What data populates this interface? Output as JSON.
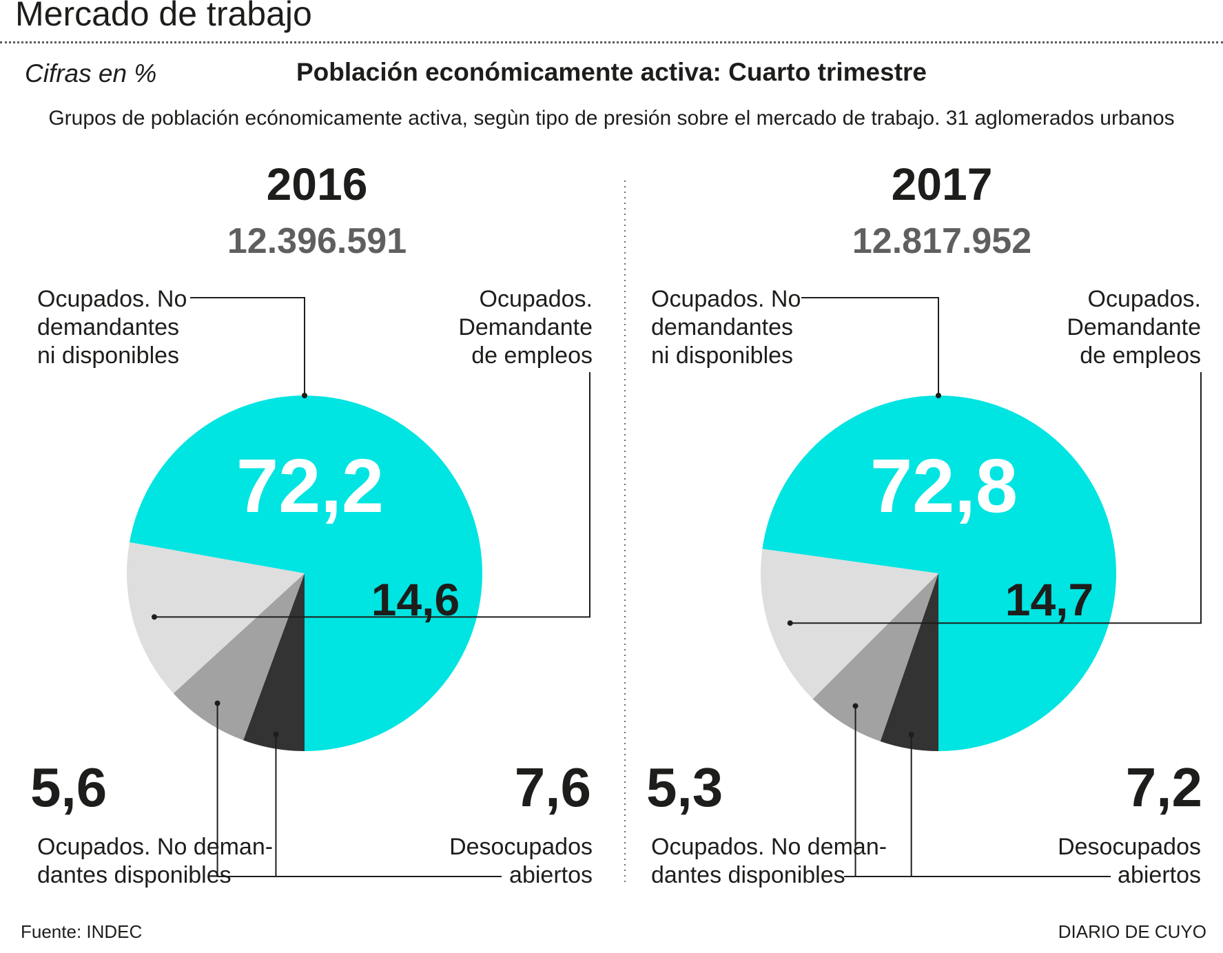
{
  "header": {
    "title": "Mercado de trabajo",
    "units": "Cifras en %",
    "chart_title": "Población económicamente activa: Cuarto trimestre",
    "subtitle": "Grupos de población ecónomicamente activa, segùn tipo de presión sobre el mercado de trabajo. 31 aglomerados urbanos"
  },
  "footer": {
    "source": "Fuente: INDEC",
    "brand": "DIARIO DE CUYO"
  },
  "colors": {
    "cyan": "#00e4e2",
    "light_gray": "#dedede",
    "mid_gray": "#a2a2a2",
    "dark": "#333333",
    "text": "#1d1d1b",
    "total_text": "#5f5f5f"
  },
  "chart_data": [
    {
      "type": "pie",
      "year": "2016",
      "total": "12.396.591",
      "slices": [
        {
          "label": "Ocupados. No demandantes ni disponibles",
          "value": 72.2,
          "value_label": "72,2",
          "color": "#00e4e2"
        },
        {
          "label": "Ocupados. Demandante de empleos",
          "value": 14.6,
          "value_label": "14,6",
          "color": "#dedede"
        },
        {
          "label": "Desocupados abiertos",
          "value": 7.6,
          "value_label": "7,6",
          "color": "#a2a2a2"
        },
        {
          "label": "Ocupados. No demandantes disponibles",
          "value": 5.6,
          "value_label": "5,6",
          "color": "#333333"
        }
      ]
    },
    {
      "type": "pie",
      "year": "2017",
      "total": "12.817.952",
      "slices": [
        {
          "label": "Ocupados. No demandantes ni disponibles",
          "value": 72.8,
          "value_label": "72,8",
          "color": "#00e4e2"
        },
        {
          "label": "Ocupados. Demandante de empleos",
          "value": 14.7,
          "value_label": "14,7",
          "color": "#dedede"
        },
        {
          "label": "Desocupados abiertos",
          "value": 7.2,
          "value_label": "7,2",
          "color": "#a2a2a2"
        },
        {
          "label": "Ocupados. No demandantes disponibles",
          "value": 5.3,
          "value_label": "5,3",
          "color": "#333333"
        }
      ]
    }
  ],
  "label_lines": {
    "label_a": [
      "Ocupados. No",
      "demandantes",
      "ni disponibles"
    ],
    "label_b": [
      "Ocupados.",
      "Demandante",
      "de empleos"
    ],
    "label_c": [
      "Ocupados. No deman-",
      "dantes disponibles"
    ],
    "label_d": [
      "Desocupados",
      "abiertos"
    ]
  }
}
